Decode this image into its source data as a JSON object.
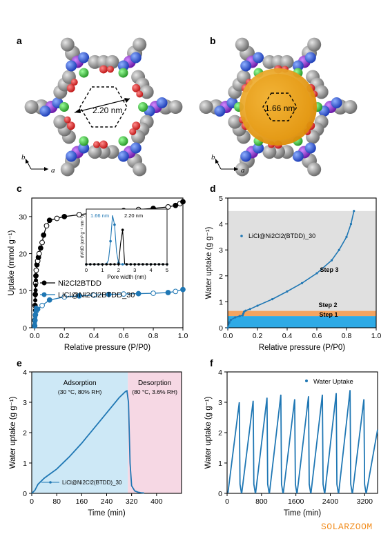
{
  "panels": {
    "a": {
      "letter": "a",
      "pore_label": "2.20 nm",
      "axis_b": "b",
      "axis_a": "a"
    },
    "b": {
      "letter": "b",
      "pore_label": "1.66 nm",
      "axis_b": "b",
      "axis_a": "a"
    },
    "c": {
      "letter": "c"
    },
    "d": {
      "letter": "d"
    },
    "e": {
      "letter": "e"
    },
    "f": {
      "letter": "f"
    }
  },
  "watermark": "SOLARZOOM",
  "chart_data": [
    {
      "id": "c",
      "type": "line",
      "xlabel": "Relative pressure (P/P0)",
      "ylabel": "Uptake (mmol g⁻¹)",
      "xlim": [
        -0.02,
        1.0
      ],
      "ylim": [
        0,
        35
      ],
      "xticks": [
        "0.0",
        "0.2",
        "0.4",
        "0.6",
        "0.8",
        "1.0"
      ],
      "yticks": [
        "0",
        "10",
        "20",
        "30"
      ],
      "legend_position": "bottom-left",
      "series": [
        {
          "name": "Ni2Cl2BTDD",
          "color": "#000000",
          "x": [
            0.0,
            0.002,
            0.004,
            0.006,
            0.008,
            0.01,
            0.015,
            0.02,
            0.025,
            0.03,
            0.04,
            0.05,
            0.06,
            0.08,
            0.1,
            0.15,
            0.2,
            0.3,
            0.4,
            0.5,
            0.6,
            0.7,
            0.8,
            0.9,
            0.95,
            0.98,
            1.0
          ],
          "y": [
            2,
            6,
            9,
            12,
            14,
            15.5,
            17,
            18,
            19,
            20,
            21.5,
            23,
            25,
            27.5,
            29,
            29.5,
            30,
            30.5,
            31,
            31.3,
            31.6,
            31.9,
            32.2,
            32.6,
            33,
            33.5,
            34
          ]
        },
        {
          "name": "LiCl@Ni2Cl2BTDD_30",
          "color": "#1f77b4",
          "x": [
            0.0,
            0.002,
            0.005,
            0.01,
            0.02,
            0.05,
            0.1,
            0.2,
            0.3,
            0.4,
            0.5,
            0.6,
            0.7,
            0.8,
            0.9,
            0.95,
            1.0
          ],
          "y": [
            0.5,
            2,
            3.5,
            4.5,
            5,
            6,
            7.5,
            8.3,
            8.6,
            8.8,
            9,
            9.1,
            9.2,
            9.3,
            9.5,
            9.8,
            10.3
          ]
        }
      ],
      "inset": {
        "xlabel": "Pore width (nm)",
        "ylabel": "dV/dD (cm³ g⁻¹ nm⁻¹)",
        "xticks": [
          "0",
          "1",
          "2",
          "3",
          "4",
          "5"
        ],
        "xlim": [
          0,
          5
        ],
        "annotations": [
          "1.66 nm",
          "2.20 nm"
        ],
        "peaks": [
          {
            "center": 1.66,
            "color": "#1f77b4"
          },
          {
            "center": 2.2,
            "color": "#000000"
          }
        ]
      }
    },
    {
      "id": "d",
      "type": "line",
      "xlabel": "Relative pressure (P/P0)",
      "ylabel": "Water uptake (g g⁻¹)",
      "xlim": [
        0,
        1.0
      ],
      "ylim": [
        0,
        5
      ],
      "xticks": [
        "0.0",
        "0.2",
        "0.4",
        "0.6",
        "0.8",
        "1.0"
      ],
      "yticks": [
        "0",
        "1",
        "2",
        "3",
        "4",
        "5"
      ],
      "series": [
        {
          "name": "LiCl@Ni2Cl2(BTDD)_30",
          "color": "#1f77b4",
          "x": [
            0.0,
            0.01,
            0.02,
            0.05,
            0.08,
            0.1,
            0.105,
            0.11,
            0.12,
            0.15,
            0.2,
            0.3,
            0.4,
            0.5,
            0.6,
            0.7,
            0.75,
            0.8,
            0.83,
            0.85
          ],
          "y": [
            0,
            0.2,
            0.3,
            0.4,
            0.45,
            0.48,
            0.55,
            0.62,
            0.66,
            0.72,
            0.85,
            1.1,
            1.4,
            1.72,
            2.1,
            2.6,
            3.0,
            3.5,
            4.0,
            4.5
          ]
        }
      ],
      "bands": [
        {
          "label": "Step 1",
          "ymin": 0,
          "ymax": 0.45,
          "color": "#2eaae6"
        },
        {
          "label": "Step 2",
          "ymin": 0.45,
          "ymax": 0.65,
          "color": "#f4a460"
        },
        {
          "label": "Step 3",
          "ymin": 0.65,
          "ymax": 4.5,
          "color": "#e0e0e0"
        }
      ]
    },
    {
      "id": "e",
      "type": "line",
      "xlabel": "Time (min)",
      "ylabel": "Water uptake (g g⁻¹)",
      "xlim": [
        0,
        480
      ],
      "ylim": [
        0,
        4
      ],
      "xticks": [
        "0",
        "80",
        "160",
        "240",
        "320",
        "400"
      ],
      "yticks": [
        "0",
        "1",
        "2",
        "3",
        "4"
      ],
      "legend_position": "bottom-left",
      "series": [
        {
          "name": "LiCl@Ni2Cl2(BTDD)_30",
          "color": "#1f77b4",
          "x": [
            0,
            10,
            20,
            40,
            60,
            80,
            120,
            160,
            200,
            240,
            280,
            300,
            305,
            310,
            315,
            320,
            330,
            340,
            350,
            360
          ],
          "y": [
            0,
            0.1,
            0.3,
            0.5,
            0.65,
            0.8,
            1.2,
            1.65,
            2.15,
            2.65,
            3.15,
            3.35,
            3.38,
            3.0,
            1.0,
            0.25,
            0.08,
            0.04,
            0.02,
            0.01
          ]
        }
      ],
      "regions": [
        {
          "label": "Adsorption",
          "condition": "(30 °C, 80% RH)",
          "xmin": 0,
          "xmax": 308,
          "color": "#cde8f6"
        },
        {
          "label": "Desorption",
          "condition": "(80 °C, 3.6% RH)",
          "xmin": 308,
          "xmax": 480,
          "color": "#f6d8e4"
        }
      ]
    },
    {
      "id": "f",
      "type": "line",
      "xlabel": "Time (min)",
      "ylabel": "Water uptake (g g⁻¹)",
      "xlim": [
        0,
        3500
      ],
      "ylim": [
        0,
        4
      ],
      "xticks": [
        "0",
        "800",
        "1600",
        "2400",
        "3200"
      ],
      "yticks": [
        "0",
        "1",
        "2",
        "3",
        "4"
      ],
      "legend_position": "top-right",
      "series": [
        {
          "name": "Water Uptake",
          "color": "#1f77b4",
          "cycle_peaks": [
            3.0,
            3.05,
            3.15,
            3.25,
            3.1,
            3.2,
            3.25,
            3.3,
            3.4,
            3.1,
            2.1
          ],
          "cycle_period_min": 322
        }
      ]
    }
  ]
}
